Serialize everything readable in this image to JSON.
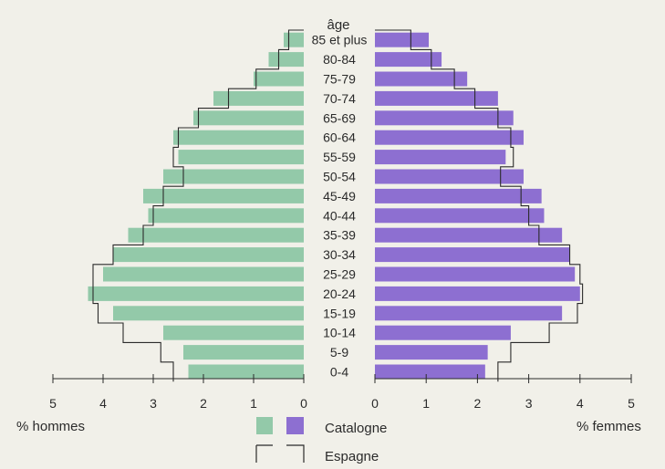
{
  "colors": {
    "background": "#f1f0e9",
    "men": "#93c9a9",
    "women": "#8d6fd1",
    "outline": "#2b2b2b"
  },
  "chart_data": {
    "type": "bar",
    "orientation": "horizontal-population-pyramid",
    "title": "",
    "center_header": "âge",
    "categories": [
      "0-4",
      "5-9",
      "10-14",
      "15-19",
      "20-24",
      "25-29",
      "30-34",
      "35-39",
      "40-44",
      "45-49",
      "50-54",
      "55-59",
      "60-64",
      "65-69",
      "70-74",
      "75-79",
      "80-84",
      "85 et plus"
    ],
    "series": [
      {
        "name": "Catalogne",
        "side": "hommes",
        "style": "filled",
        "values": [
          2.3,
          2.4,
          2.8,
          3.8,
          4.3,
          4.0,
          3.8,
          3.5,
          3.1,
          3.2,
          2.8,
          2.5,
          2.6,
          2.2,
          1.8,
          1.0,
          0.7,
          0.4
        ]
      },
      {
        "name": "Catalogne",
        "side": "femmes",
        "style": "filled",
        "values": [
          2.15,
          2.2,
          2.65,
          3.65,
          4.0,
          3.9,
          3.8,
          3.65,
          3.3,
          3.25,
          2.9,
          2.55,
          2.9,
          2.7,
          2.4,
          1.8,
          1.3,
          1.05
        ]
      },
      {
        "name": "Espagne",
        "side": "hommes",
        "style": "outline",
        "values": [
          2.6,
          2.85,
          3.6,
          4.1,
          4.2,
          4.2,
          3.8,
          3.2,
          3.0,
          2.8,
          2.4,
          2.6,
          2.5,
          2.1,
          1.5,
          0.95,
          0.5,
          0.3
        ]
      },
      {
        "name": "Espagne",
        "side": "femmes",
        "style": "outline",
        "values": [
          2.4,
          2.65,
          3.4,
          3.95,
          4.05,
          4.0,
          3.8,
          3.2,
          3.0,
          2.85,
          2.45,
          2.7,
          2.65,
          2.4,
          1.95,
          1.55,
          1.1,
          0.7
        ]
      }
    ],
    "x_ticks": [
      "5",
      "4",
      "3",
      "2",
      "1",
      "0"
    ],
    "x_ticks_right": [
      "0",
      "1",
      "2",
      "3",
      "4",
      "5"
    ],
    "xlim": [
      0,
      5
    ],
    "xlabel_left": "% hommes",
    "xlabel_right": "% femmes",
    "legend": {
      "placement": "bottom-center",
      "items": [
        {
          "label": "Catalogne",
          "style": "filled"
        },
        {
          "label": "Espagne",
          "style": "outline"
        }
      ]
    }
  }
}
